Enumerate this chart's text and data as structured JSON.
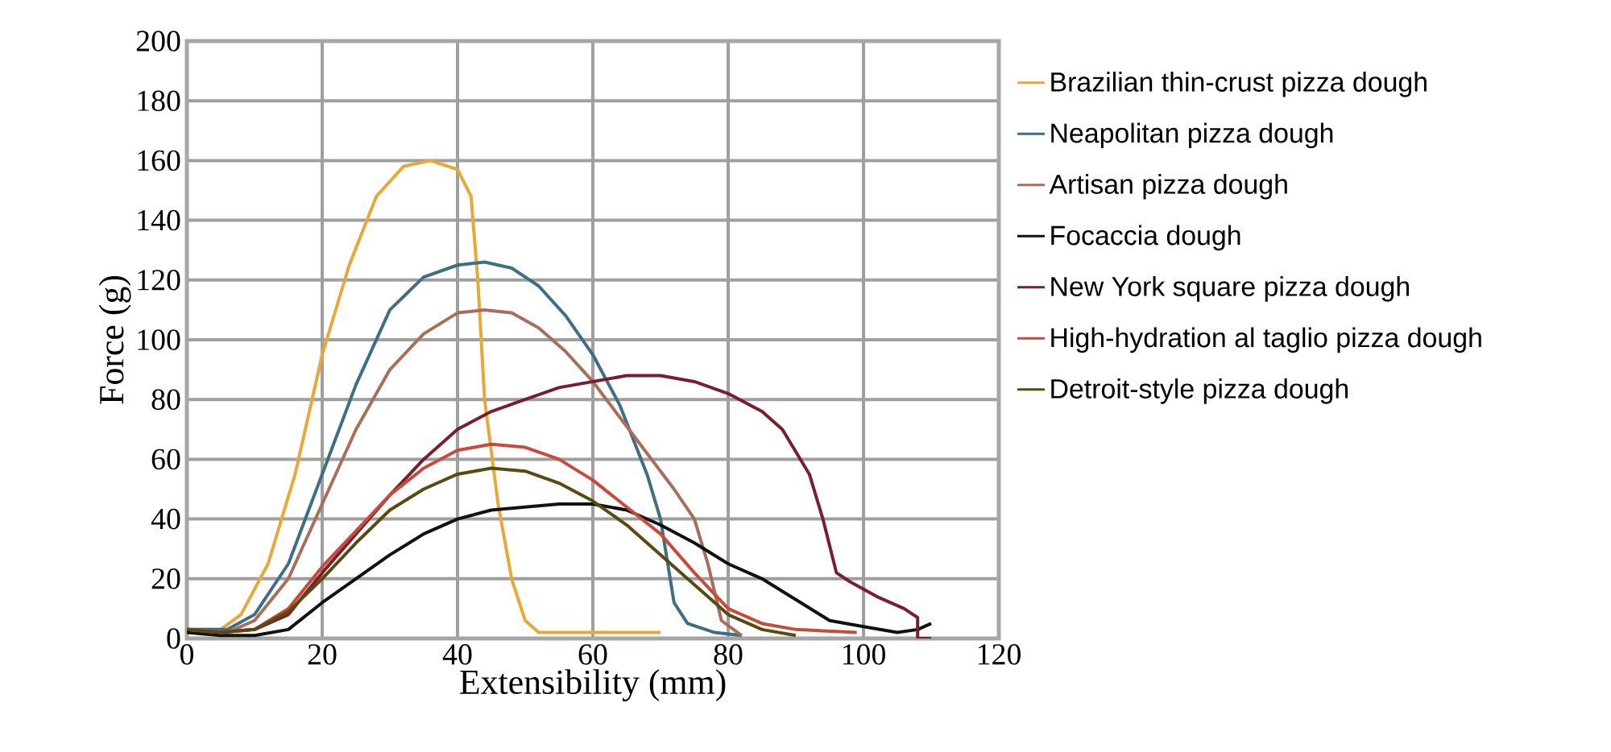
{
  "chart_data": {
    "type": "line",
    "xlabel": "Extensibility (mm)",
    "ylabel": "Force (g)",
    "xlim": [
      0,
      120
    ],
    "ylim": [
      0,
      200
    ],
    "xticks": [
      0,
      20,
      40,
      60,
      80,
      100,
      120
    ],
    "yticks": [
      0,
      20,
      40,
      60,
      80,
      100,
      120,
      140,
      160,
      180,
      200
    ],
    "grid": true,
    "legend": "right",
    "marker": "none",
    "line_style": "solid",
    "series": [
      {
        "name": "Brazilian thin-crust pizza dough",
        "color": "#e8a838",
        "x": [
          0,
          5,
          8,
          12,
          16,
          20,
          24,
          28,
          32,
          36,
          40,
          42,
          43,
          44,
          46,
          48,
          50,
          52,
          60,
          70
        ],
        "values": [
          3,
          3,
          8,
          25,
          55,
          95,
          125,
          148,
          158,
          160,
          157,
          148,
          120,
          80,
          45,
          20,
          6,
          2,
          2,
          2
        ]
      },
      {
        "name": "Neapolitan pizza dough",
        "color": "#3d6e86",
        "x": [
          0,
          6,
          10,
          15,
          20,
          25,
          30,
          35,
          40,
          44,
          48,
          52,
          56,
          60,
          64,
          68,
          70,
          72,
          74,
          78,
          82
        ],
        "values": [
          3,
          3,
          8,
          25,
          55,
          85,
          110,
          121,
          125,
          126,
          124,
          118,
          108,
          95,
          78,
          55,
          40,
          12,
          5,
          2,
          1
        ]
      },
      {
        "name": "Artisan pizza dough",
        "color": "#a86e5a",
        "x": [
          0,
          6,
          10,
          15,
          20,
          25,
          30,
          35,
          40,
          44,
          48,
          52,
          56,
          60,
          64,
          68,
          72,
          75,
          77,
          79,
          82
        ],
        "values": [
          3,
          2,
          6,
          20,
          45,
          70,
          90,
          102,
          109,
          110,
          109,
          104,
          96,
          86,
          74,
          62,
          50,
          40,
          25,
          6,
          1
        ]
      },
      {
        "name": "Focaccia dough",
        "color": "#111111",
        "x": [
          0,
          5,
          10,
          15,
          20,
          25,
          30,
          35,
          40,
          45,
          50,
          55,
          60,
          65,
          70,
          75,
          80,
          85,
          90,
          95,
          100,
          105,
          108,
          110
        ],
        "values": [
          2,
          1,
          1,
          3,
          12,
          20,
          28,
          35,
          40,
          43,
          44,
          45,
          45,
          43,
          38,
          32,
          25,
          20,
          13,
          6,
          4,
          2,
          3,
          5
        ]
      },
      {
        "name": "New York square pizza dough",
        "color": "#7a1e2e",
        "x": [
          0,
          5,
          10,
          15,
          20,
          25,
          30,
          35,
          40,
          45,
          50,
          55,
          60,
          65,
          70,
          75,
          80,
          85,
          88,
          92,
          94,
          96,
          98,
          102,
          106,
          108,
          108,
          110
        ],
        "values": [
          3,
          2,
          3,
          8,
          22,
          35,
          48,
          60,
          70,
          76,
          80,
          84,
          86,
          88,
          88,
          86,
          82,
          76,
          70,
          55,
          40,
          22,
          19,
          14,
          10,
          7,
          0,
          0
        ]
      },
      {
        "name": "High-hydration al taglio pizza dough",
        "color": "#c84a3a",
        "x": [
          0,
          5,
          10,
          15,
          20,
          25,
          30,
          35,
          40,
          45,
          50,
          55,
          60,
          65,
          70,
          75,
          80,
          85,
          90,
          99
        ],
        "values": [
          3,
          2,
          3,
          10,
          24,
          36,
          48,
          57,
          63,
          65,
          64,
          60,
          53,
          44,
          35,
          22,
          10,
          5,
          3,
          2
        ]
      },
      {
        "name": "Detroit-style pizza dough",
        "color": "#5a4a10",
        "x": [
          0,
          5,
          10,
          15,
          20,
          25,
          30,
          35,
          40,
          45,
          50,
          55,
          60,
          65,
          70,
          75,
          80,
          85,
          90
        ],
        "values": [
          3,
          2,
          3,
          9,
          20,
          32,
          43,
          50,
          55,
          57,
          56,
          52,
          46,
          38,
          28,
          18,
          8,
          3,
          1
        ]
      }
    ]
  }
}
